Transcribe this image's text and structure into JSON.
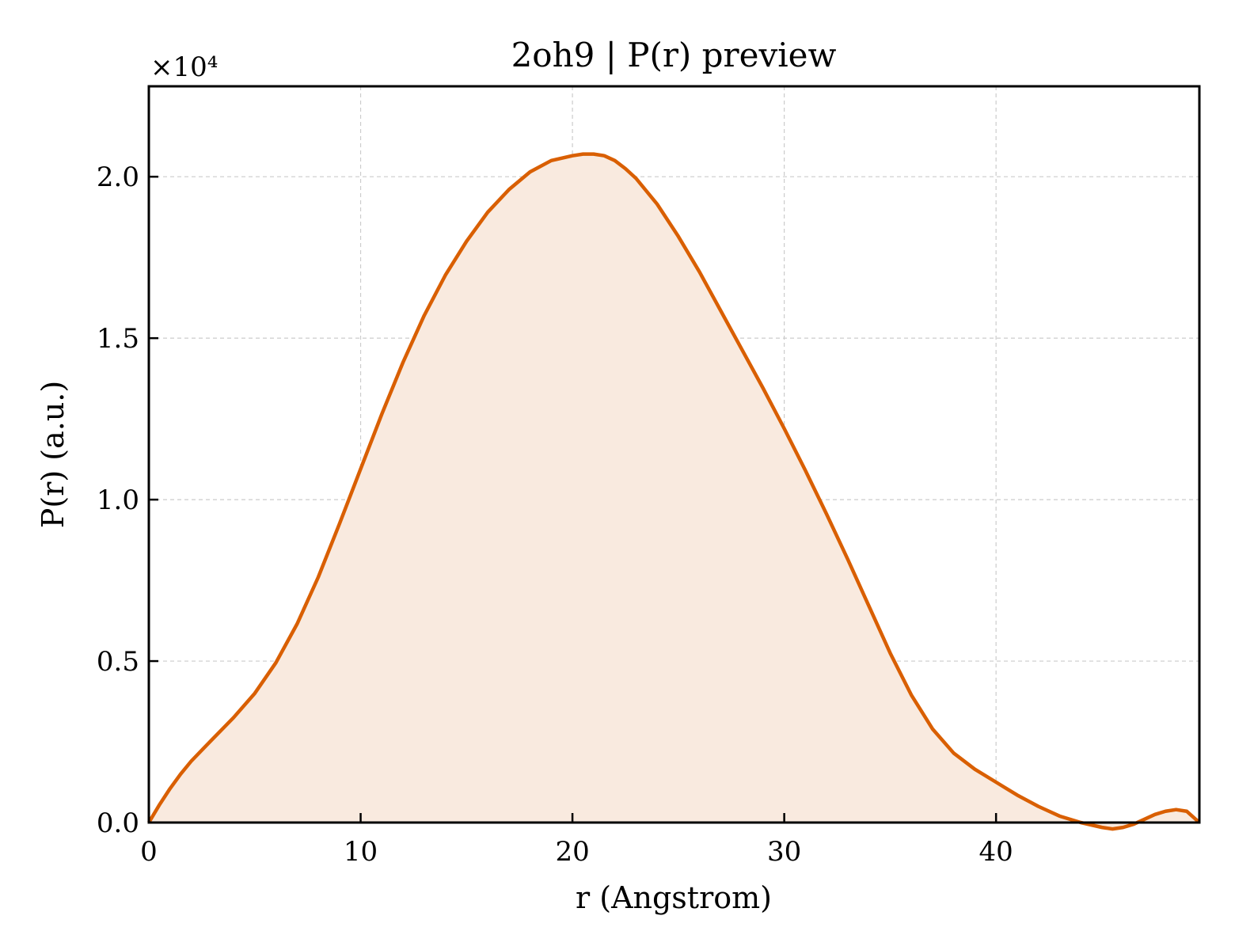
{
  "chart_data": {
    "type": "area",
    "title": "2oh9 | P(r) preview",
    "xlabel": "r (Angstrom)",
    "ylabel": "P(r) (a.u.)",
    "y_multiplier": "×10⁴",
    "xlim": [
      0,
      49.6
    ],
    "ylim": [
      0,
      22800
    ],
    "xticks": [
      0,
      10,
      20,
      30,
      40
    ],
    "xtick_labels": [
      "0",
      "10",
      "20",
      "30",
      "40"
    ],
    "yticks": [
      0,
      5000,
      10000,
      15000,
      20000
    ],
    "ytick_labels": [
      "0.0",
      "0.5",
      "1.0",
      "1.5",
      "2.0"
    ],
    "grid": true,
    "colors": {
      "line": "#d95f02",
      "fill": "#f9eadf"
    },
    "series": [
      {
        "x": [
          0,
          0.5,
          1,
          1.5,
          2,
          3,
          4,
          5,
          6,
          7,
          8,
          9,
          10,
          11,
          12,
          13,
          14,
          15,
          16,
          17,
          18,
          19,
          20,
          20.5,
          21,
          21.5,
          22,
          22.5,
          23,
          24,
          25,
          26,
          27,
          28,
          29,
          30,
          31,
          32,
          33,
          34,
          35,
          36,
          37,
          38,
          39,
          40,
          41,
          42,
          43,
          44,
          45,
          45.5,
          46,
          46.5,
          47,
          47.5,
          48,
          48.5,
          49,
          49.6
        ],
        "y": [
          0,
          550,
          1050,
          1500,
          1900,
          2580,
          3250,
          4000,
          4950,
          6150,
          7600,
          9250,
          10950,
          12650,
          14250,
          15700,
          16950,
          18000,
          18900,
          19600,
          20150,
          20500,
          20650,
          20700,
          20700,
          20650,
          20500,
          20250,
          19950,
          19150,
          18150,
          17050,
          15850,
          14650,
          13450,
          12200,
          10900,
          9550,
          8150,
          6700,
          5250,
          3950,
          2900,
          2150,
          1650,
          1250,
          850,
          500,
          200,
          0,
          -150,
          -200,
          -150,
          -50,
          100,
          250,
          350,
          400,
          350,
          0
        ]
      }
    ]
  }
}
